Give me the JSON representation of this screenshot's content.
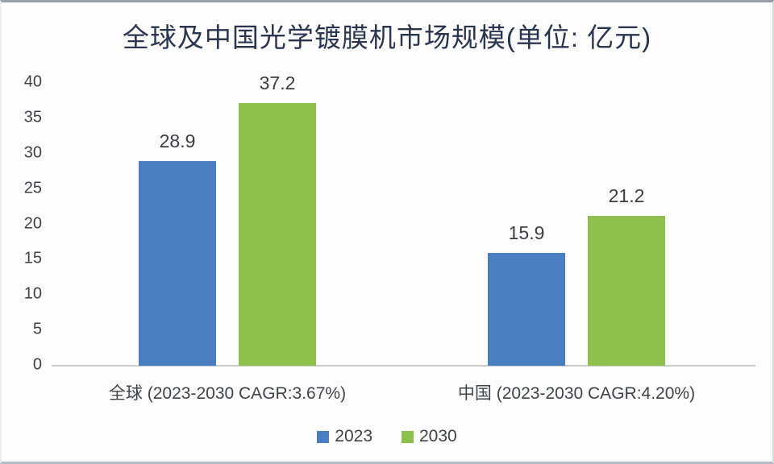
{
  "title": "全球及中国光学镀膜机市场规模(单位: 亿元)",
  "chart_data": {
    "type": "bar",
    "title": "全球及中国光学镀膜机市场规模(单位: 亿元)",
    "unit": "亿元",
    "categories": [
      "全球 (2023-2030 CAGR:3.67%)",
      "中国 (2023-2030 CAGR:4.20%)"
    ],
    "series": [
      {
        "name": "2023",
        "color": "#4a7ec0",
        "values": [
          28.9,
          15.9
        ]
      },
      {
        "name": "2030",
        "color": "#8dc04d",
        "values": [
          37.2,
          21.2
        ]
      }
    ],
    "value_labels": [
      [
        "28.9",
        "15.9"
      ],
      [
        "37.2",
        "21.2"
      ]
    ],
    "ylim": [
      0,
      40
    ],
    "yticks": [
      0,
      5,
      10,
      15,
      20,
      25,
      30,
      35,
      40
    ],
    "grid": false,
    "legend_position": "bottom",
    "legend_entries": [
      "2023",
      "2030"
    ],
    "axis_line_color": "#c9ccd0",
    "text_color": "#3f4449",
    "title_color": "#2a3650"
  }
}
